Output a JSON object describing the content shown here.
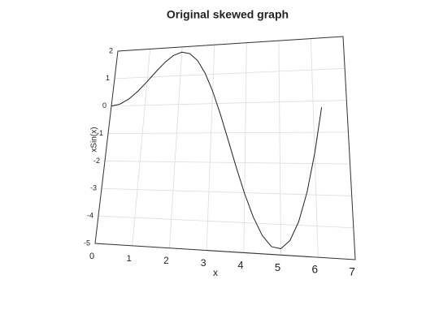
{
  "chart_data": {
    "type": "line",
    "title": "Original skewed graph",
    "xlabel": "x",
    "ylabel": "xSin(x)",
    "x": [
      0,
      0.25,
      0.5,
      0.75,
      1,
      1.25,
      1.5,
      1.75,
      2,
      2.25,
      2.5,
      2.75,
      3,
      3.25,
      3.5,
      3.75,
      4,
      4.25,
      4.5,
      4.75,
      5,
      5.25,
      5.5,
      5.75,
      6,
      6.25
    ],
    "values": [
      0,
      0.062,
      0.24,
      0.511,
      0.841,
      1.186,
      1.496,
      1.722,
      1.819,
      1.751,
      1.496,
      1.05,
      0.423,
      -0.352,
      -1.228,
      -2.143,
      -3.027,
      -3.804,
      -4.399,
      -4.747,
      -4.795,
      -4.509,
      -3.88,
      -2.923,
      -1.676,
      -0.207
    ],
    "color": "#222222",
    "xlim": [
      0,
      7
    ],
    "xticks": [
      0,
      1,
      2,
      3,
      4,
      5,
      6,
      7
    ],
    "ylim": [
      -5,
      2
    ],
    "yticks": [
      -5,
      -4,
      -3,
      -2,
      -1,
      0,
      1,
      2
    ],
    "grid": true
  }
}
